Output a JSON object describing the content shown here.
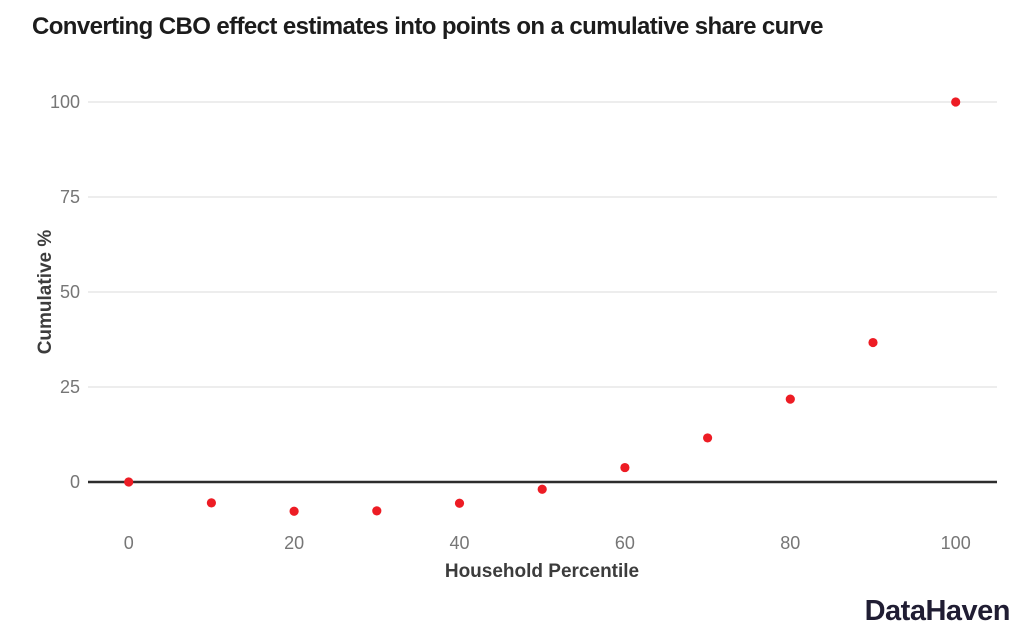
{
  "title": "Converting CBO effect estimates into points on a cumulative share curve",
  "branding": "DataHaven",
  "colors": {
    "background": "#ffffff",
    "title": "#1c1c1c",
    "axis_title": "#3c3c3c",
    "tick_label": "#767676",
    "grid": "#e7e7e7",
    "zero_line": "#2d2d2d",
    "point": "#ed1c24",
    "branding": "#201d33"
  },
  "chart_data": {
    "type": "scatter",
    "title": "Converting CBO effect estimates into points on a cumulative share curve",
    "xlabel": "Household Percentile",
    "ylabel": "Cumulative %",
    "x": [
      0,
      10,
      20,
      30,
      40,
      50,
      60,
      70,
      80,
      90,
      100
    ],
    "y": [
      0,
      -5.5,
      -7.7,
      -7.6,
      -5.6,
      -1.9,
      3.8,
      11.6,
      21.8,
      36.7,
      100
    ],
    "x_ticks": [
      0,
      20,
      40,
      60,
      80,
      100
    ],
    "y_ticks": [
      0,
      25,
      50,
      75,
      100
    ],
    "xlim": [
      -5,
      105
    ],
    "ylim": [
      -13,
      105
    ],
    "grid": "horizontal-only",
    "zero_line": true,
    "legend": "none",
    "point_color": "#ed1c24",
    "source_label": "DataHaven"
  }
}
